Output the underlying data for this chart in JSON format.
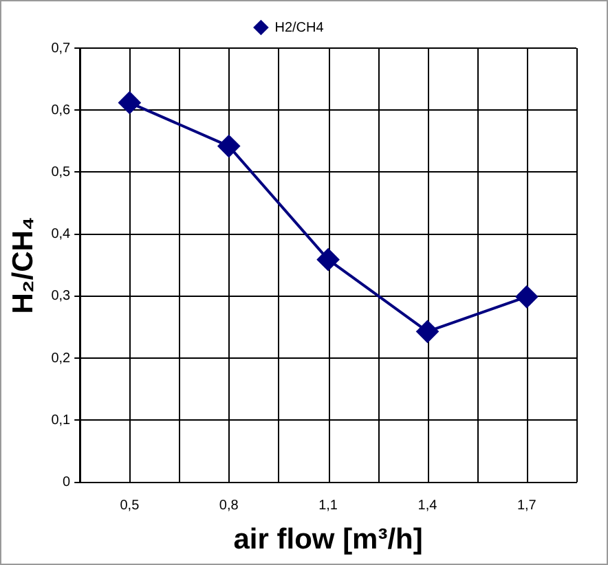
{
  "chart_data": {
    "type": "line",
    "xlabel": "air flow [m³/h]",
    "ylabel": "H₂/CH₄",
    "categories": [
      "0,5",
      "0,8",
      "1,1",
      "1,4",
      "1,7"
    ],
    "series": [
      {
        "name": "H2/CH4",
        "color": "#000080",
        "values": [
          0.612,
          0.542,
          0.359,
          0.243,
          0.299
        ]
      }
    ],
    "ylim": [
      0,
      0.7
    ],
    "yticks": [
      {
        "value": 0,
        "label": "0"
      },
      {
        "value": 0.1,
        "label": "0,1"
      },
      {
        "value": 0.2,
        "label": "0,2"
      },
      {
        "value": 0.3,
        "label": "0,3"
      },
      {
        "value": 0.4,
        "label": "0,4"
      },
      {
        "value": 0.5,
        "label": "0,5"
      },
      {
        "value": 0.6,
        "label": "0,6"
      },
      {
        "value": 0.7,
        "label": "0,7"
      }
    ],
    "grid": true,
    "legend": "top",
    "marker": "diamond",
    "line_style": "solid"
  }
}
